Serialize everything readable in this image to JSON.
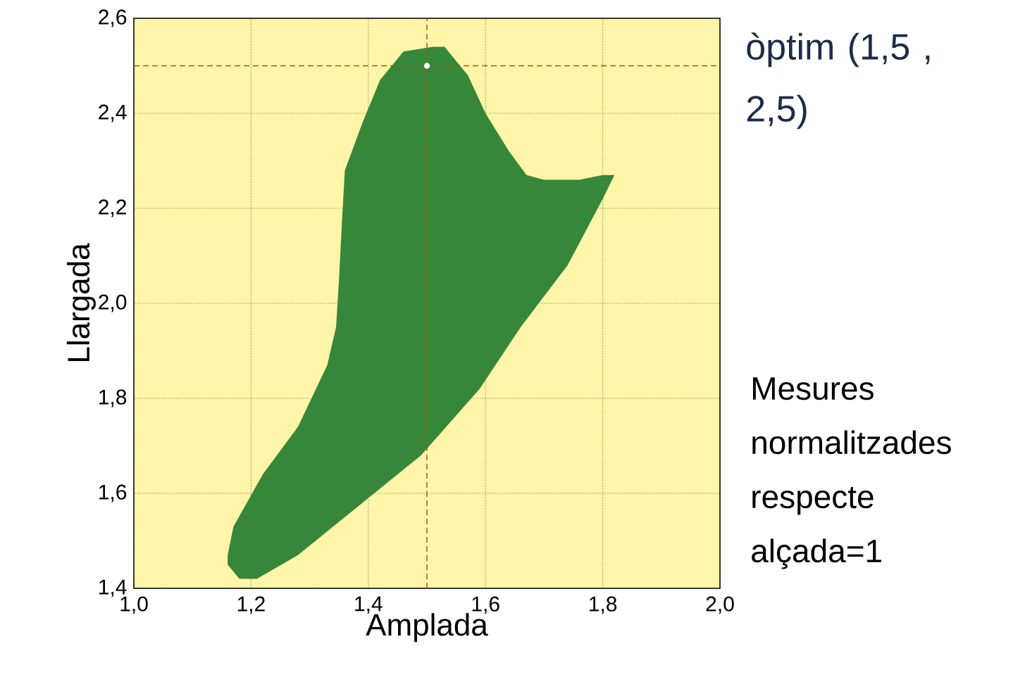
{
  "chart_data": {
    "type": "area",
    "xlabel": "Amplada",
    "ylabel": "Llargada",
    "xlim": [
      1.0,
      2.0
    ],
    "ylim": [
      1.4,
      2.6
    ],
    "xticks": [
      {
        "value": 1.0,
        "label": "1,0"
      },
      {
        "value": 1.2,
        "label": "1,2"
      },
      {
        "value": 1.4,
        "label": "1,4"
      },
      {
        "value": 1.6,
        "label": "1,6"
      },
      {
        "value": 1.8,
        "label": "1,8"
      },
      {
        "value": 2.0,
        "label": "2,0"
      }
    ],
    "yticks": [
      {
        "value": 1.4,
        "label": "1,4"
      },
      {
        "value": 1.6,
        "label": "1,6"
      },
      {
        "value": 1.8,
        "label": "1,8"
      },
      {
        "value": 2.0,
        "label": "2,0"
      },
      {
        "value": 2.2,
        "label": "2,2"
      },
      {
        "value": 2.4,
        "label": "2,4"
      },
      {
        "value": 2.6,
        "label": "2,6"
      }
    ],
    "grid": true,
    "series": [
      {
        "color": "#36873a",
        "x": [
          1.16,
          1.17,
          1.22,
          1.28,
          1.33,
          1.345,
          1.35,
          1.355,
          1.36,
          1.39,
          1.42,
          1.46,
          1.51,
          1.53,
          1.57,
          1.6,
          1.64,
          1.67,
          1.7,
          1.76,
          1.8,
          1.82,
          1.8,
          1.74,
          1.66,
          1.59,
          1.49,
          1.37,
          1.28,
          1.21,
          1.18,
          1.16
        ],
        "values": [
          1.47,
          1.53,
          1.64,
          1.74,
          1.87,
          1.95,
          2.05,
          2.17,
          2.28,
          2.38,
          2.47,
          2.53,
          2.54,
          2.54,
          2.48,
          2.4,
          2.32,
          2.27,
          2.26,
          2.26,
          2.27,
          2.27,
          2.22,
          2.08,
          1.95,
          1.82,
          1.68,
          1.56,
          1.47,
          1.42,
          1.42,
          1.45
        ]
      },
      {
        "type": "scatter",
        "color": "#ffffff",
        "x": [
          1.5
        ],
        "values": [
          2.5
        ]
      }
    ],
    "ref_lines": [
      {
        "axis": "x",
        "value": 1.5,
        "color": "#9a5a10",
        "line_style": "dashed"
      },
      {
        "axis": "y",
        "value": 2.5,
        "color": "#9a5a10",
        "line_style": "dashed"
      }
    ],
    "annotations": [
      "òptim (1,5 , 2,5)",
      "Mesures normalitzades respecte alçada=1"
    ]
  }
}
